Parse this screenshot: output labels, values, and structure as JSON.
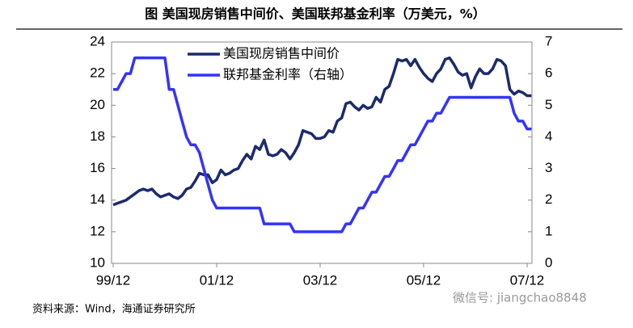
{
  "chart_data": {
    "type": "line",
    "title": "图  美国现房销售中间价、美国联邦基金利率（万美元，%）",
    "source": "资料来源：Wind，海通证券研究所",
    "watermark": "微信号: jiangchao8848",
    "categories": [
      "99/12",
      null,
      null,
      null,
      null,
      null,
      null,
      null,
      null,
      null,
      null,
      null,
      null,
      null,
      null,
      null,
      null,
      null,
      null,
      null,
      null,
      null,
      null,
      null,
      "01/12",
      null,
      null,
      null,
      null,
      null,
      null,
      null,
      null,
      null,
      null,
      null,
      null,
      null,
      null,
      null,
      null,
      null,
      null,
      null,
      null,
      null,
      null,
      null,
      "03/12",
      null,
      null,
      null,
      null,
      null,
      null,
      null,
      null,
      null,
      null,
      null,
      null,
      null,
      null,
      null,
      null,
      null,
      null,
      null,
      null,
      null,
      null,
      null,
      "05/12",
      null,
      null,
      null,
      null,
      null,
      null,
      null,
      null,
      null,
      null,
      null,
      null,
      null,
      null,
      null,
      null,
      null,
      null,
      null,
      null,
      null,
      null,
      null,
      "07/12",
      null
    ],
    "series": [
      {
        "name": "美国现房销售中间价",
        "color": "#1c2a6e",
        "axis": "y",
        "values": [
          13.7,
          13.8,
          13.9,
          14.0,
          14.2,
          14.4,
          14.6,
          14.7,
          14.6,
          14.7,
          14.4,
          14.2,
          14.3,
          14.4,
          14.2,
          14.1,
          14.3,
          14.7,
          14.8,
          15.2,
          15.7,
          15.6,
          15.6,
          15.1,
          15.3,
          15.9,
          15.6,
          15.7,
          15.9,
          16.0,
          16.5,
          16.9,
          16.6,
          17.4,
          17.2,
          17.8,
          16.9,
          16.8,
          16.9,
          17.2,
          17.0,
          16.6,
          17.0,
          17.5,
          18.4,
          18.3,
          18.2,
          17.9,
          17.9,
          18.0,
          18.4,
          18.3,
          19.0,
          19.2,
          20.1,
          20.2,
          19.9,
          19.7,
          20.0,
          19.8,
          19.9,
          20.5,
          20.2,
          21.0,
          21.2,
          22.0,
          22.9,
          22.8,
          22.9,
          22.5,
          22.9,
          22.4,
          22.0,
          21.7,
          21.5,
          22.0,
          22.3,
          22.9,
          23.0,
          22.6,
          22.1,
          21.9,
          22.0,
          21.1,
          21.8,
          22.3,
          22.0,
          22.0,
          22.3,
          22.9,
          22.8,
          22.5,
          21.0,
          20.7,
          20.9,
          20.8,
          20.6,
          20.6
        ]
      },
      {
        "name": "联邦基金利率（右轴）",
        "color": "#3333ff",
        "axis": "y2",
        "values": [
          5.5,
          5.5,
          5.75,
          6.0,
          6.0,
          6.5,
          6.5,
          6.5,
          6.5,
          6.5,
          6.5,
          6.5,
          6.5,
          5.5,
          5.5,
          5.0,
          4.5,
          4.0,
          3.75,
          3.75,
          3.5,
          3.0,
          2.5,
          2.0,
          1.75,
          1.75,
          1.75,
          1.75,
          1.75,
          1.75,
          1.75,
          1.75,
          1.75,
          1.75,
          1.75,
          1.25,
          1.25,
          1.25,
          1.25,
          1.25,
          1.25,
          1.25,
          1.0,
          1.0,
          1.0,
          1.0,
          1.0,
          1.0,
          1.0,
          1.0,
          1.0,
          1.0,
          1.0,
          1.0,
          1.25,
          1.25,
          1.5,
          1.75,
          1.75,
          2.0,
          2.25,
          2.25,
          2.5,
          2.75,
          2.75,
          3.0,
          3.25,
          3.25,
          3.5,
          3.75,
          3.75,
          4.0,
          4.25,
          4.5,
          4.5,
          4.75,
          4.75,
          5.0,
          5.25,
          5.25,
          5.25,
          5.25,
          5.25,
          5.25,
          5.25,
          5.25,
          5.25,
          5.25,
          5.25,
          5.25,
          5.25,
          5.25,
          5.25,
          4.75,
          4.5,
          4.5,
          4.25,
          4.25
        ]
      }
    ],
    "ylim": [
      10,
      24
    ],
    "yticks": [
      10,
      12,
      14,
      16,
      18,
      20,
      22,
      24
    ],
    "y2lim": [
      0,
      7
    ],
    "y2ticks": [
      0,
      1,
      2,
      3,
      4,
      5,
      6,
      7
    ],
    "legend": "top-left",
    "grid": false
  }
}
